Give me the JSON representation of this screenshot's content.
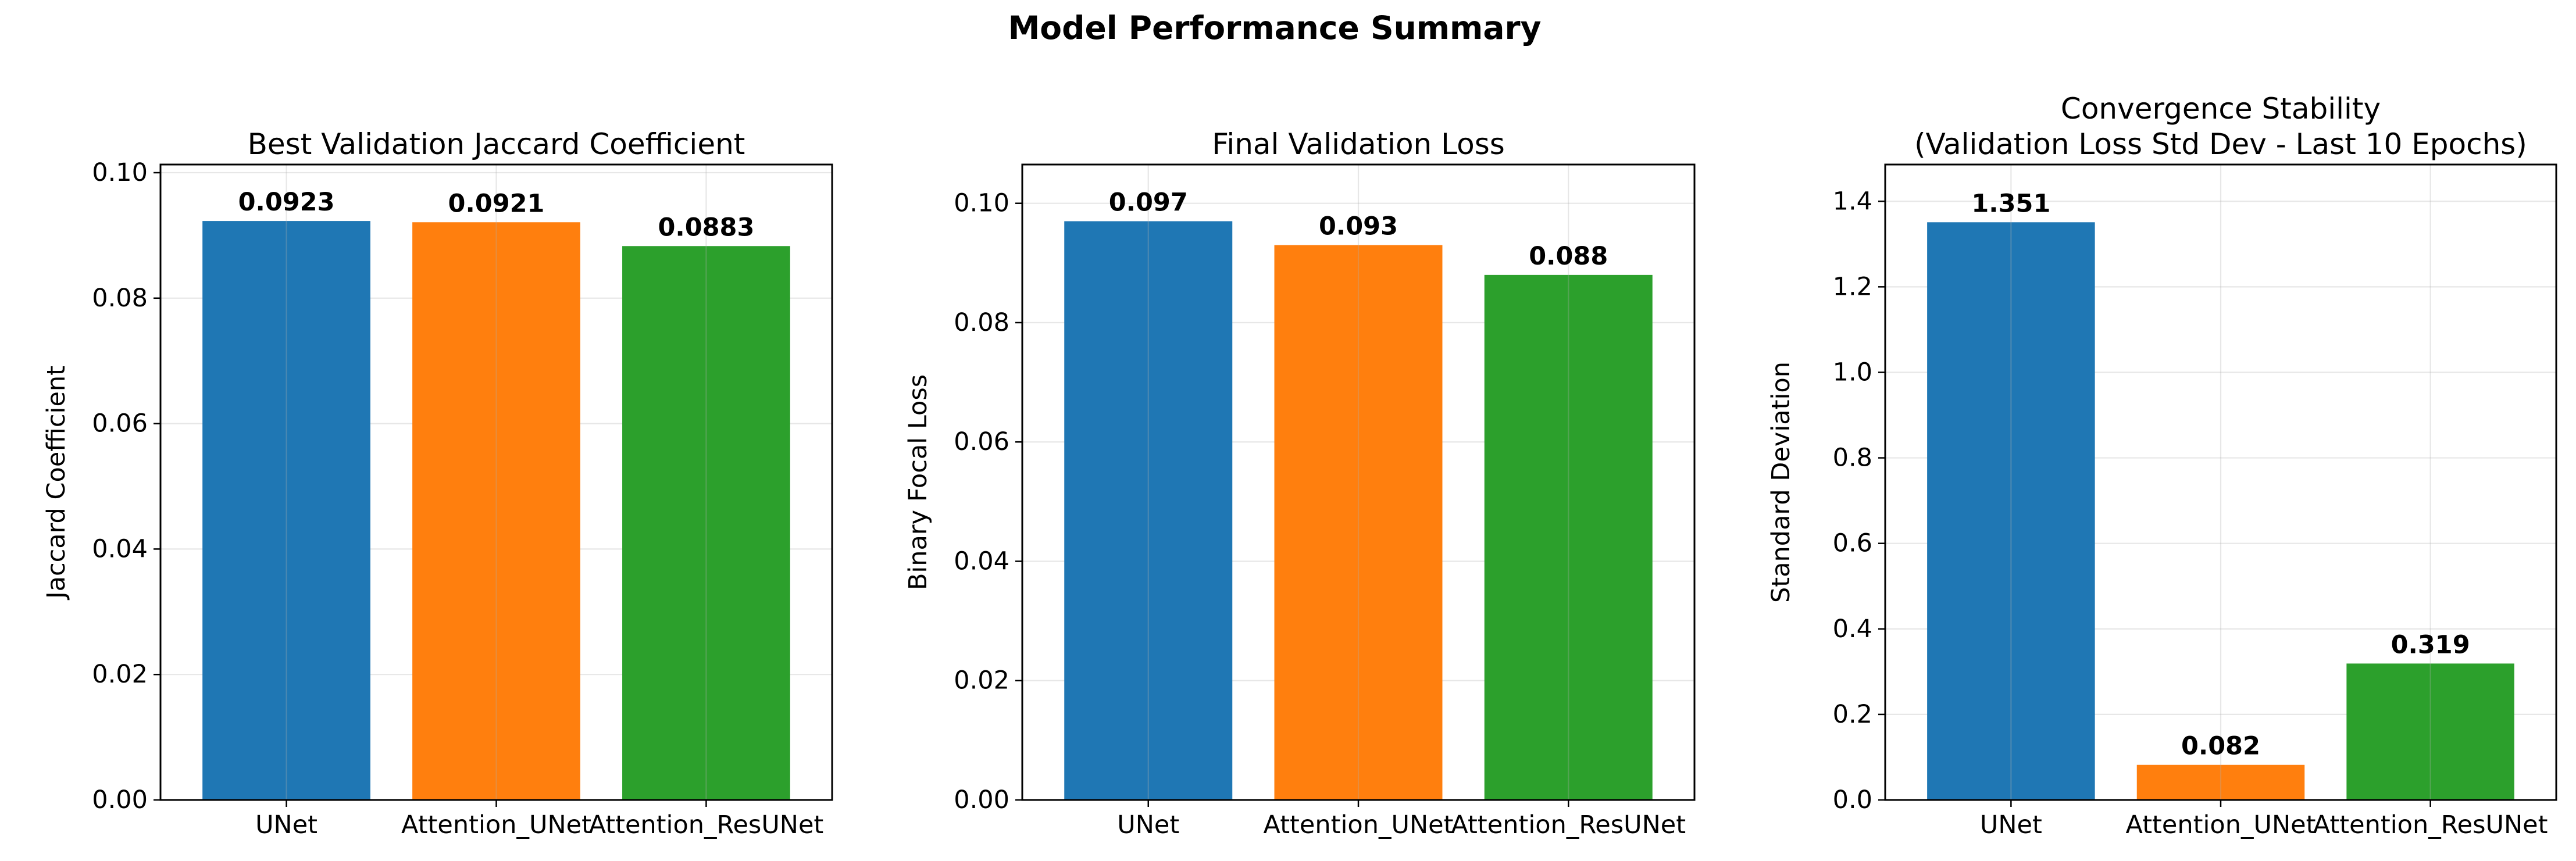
{
  "figure": {
    "suptitle": "Model Performance Summary"
  },
  "chart_data": [
    {
      "type": "bar",
      "title": "Best Validation Jaccard Coefficient",
      "xlabel": "",
      "ylabel": "Jaccard Coefficient",
      "categories": [
        "UNet",
        "Attention_UNet",
        "Attention_ResUNet"
      ],
      "values": [
        0.0923,
        0.0921,
        0.0883
      ],
      "value_labels": [
        "0.0923",
        "0.0921",
        "0.0883"
      ],
      "colors": [
        "#1f77b4",
        "#ff7f0e",
        "#2ca02c"
      ],
      "ylim": [
        0,
        0.1013
      ],
      "yticks": [
        0.0,
        0.02,
        0.04,
        0.06,
        0.08,
        0.1
      ],
      "ytick_labels": [
        "0.00",
        "0.02",
        "0.04",
        "0.06",
        "0.08",
        "0.10"
      ],
      "grid": true,
      "legend": "none"
    },
    {
      "type": "bar",
      "title": "Final Validation Loss",
      "xlabel": "",
      "ylabel": "Binary Focal Loss",
      "categories": [
        "UNet",
        "Attention_UNet",
        "Attention_ResUNet"
      ],
      "values": [
        0.097,
        0.093,
        0.088
      ],
      "value_labels": [
        "0.097",
        "0.093",
        "0.088"
      ],
      "colors": [
        "#1f77b4",
        "#ff7f0e",
        "#2ca02c"
      ],
      "ylim": [
        0,
        0.1065
      ],
      "yticks": [
        0.0,
        0.02,
        0.04,
        0.06,
        0.08,
        0.1
      ],
      "ytick_labels": [
        "0.00",
        "0.02",
        "0.04",
        "0.06",
        "0.08",
        "0.10"
      ],
      "grid": true,
      "legend": "none"
    },
    {
      "type": "bar",
      "title": "Convergence Stability\n(Validation Loss Std Dev - Last 10 Epochs)",
      "xlabel": "",
      "ylabel": "Standard Deviation",
      "categories": [
        "UNet",
        "Attention_UNet",
        "Attention_ResUNet"
      ],
      "values": [
        1.351,
        0.082,
        0.319
      ],
      "value_labels": [
        "1.351",
        "0.082",
        "0.319"
      ],
      "colors": [
        "#1f77b4",
        "#ff7f0e",
        "#2ca02c"
      ],
      "ylim": [
        0,
        1.486
      ],
      "yticks": [
        0.0,
        0.2,
        0.4,
        0.6,
        0.8,
        1.0,
        1.2,
        1.4
      ],
      "ytick_labels": [
        "0.0",
        "0.2",
        "0.4",
        "0.6",
        "0.8",
        "1.0",
        "1.2",
        "1.4"
      ],
      "grid": true,
      "legend": "none"
    }
  ]
}
